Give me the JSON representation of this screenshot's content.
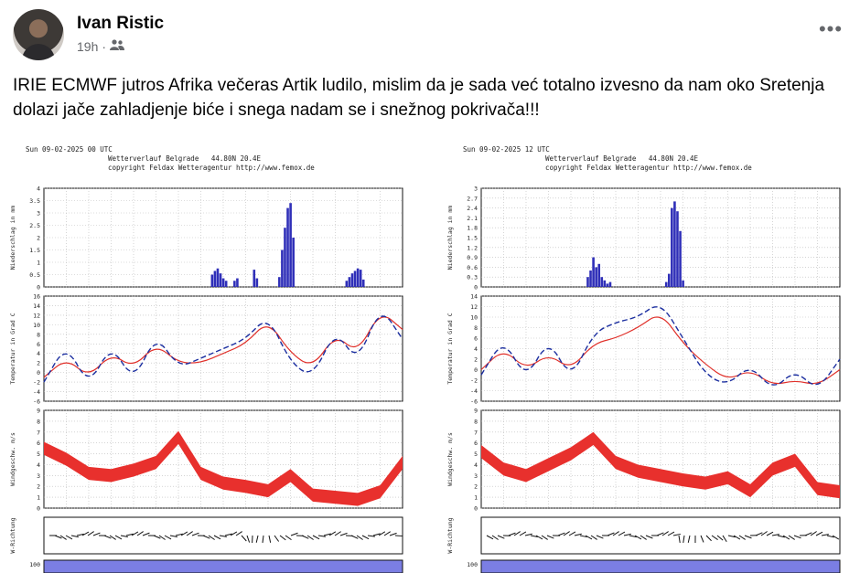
{
  "post": {
    "author": "Ivan Ristic",
    "time": "19h",
    "privacy_icon": "friends-icon",
    "text": "IRIE ECMWF jutros Afrika večeras Artik ludilo, mislim da je sada već totalno izvesno da nam oko Sretenja dolazi jače zahladjenje biće i snega nadam se i snežnog pokrivača!!!"
  },
  "charts": [
    {
      "run": "Sun 09-02-2025 00 UTC",
      "station": "Wetterverlauf Belgrade",
      "coords": "44.80N 20.4E",
      "copyright": "copyright Feldax Wetteragentur http://www.femox.de",
      "precip_label": "Niederschlag in mm",
      "temp_label": "Temperatur in Grad C",
      "wind_label": "Windgeschw. m/s",
      "dir_label": "W-Richtung",
      "precip_ticks": [
        "4",
        "3.5",
        "3",
        "2.5",
        "2",
        "1.5",
        "1",
        "0.5",
        "0"
      ],
      "temp_ticks": [
        "16",
        "14",
        "12",
        "10",
        "8",
        "6",
        "4",
        "2",
        "0",
        "-2",
        "-4",
        "-6"
      ],
      "wind_ticks": [
        "9",
        "8",
        "7",
        "6",
        "5",
        "4",
        "3",
        "2",
        "1",
        "0"
      ]
    },
    {
      "run": "Sun 09-02-2025 12 UTC",
      "station": "Wetterverlauf Belgrade",
      "coords": "44.80N 20.4E",
      "copyright": "copyright Feldax Wetteragentur http://www.femox.de",
      "precip_label": "Niederschlag in mm",
      "temp_label": "Temperatur in Grad C",
      "wind_label": "Windgeschw. m/s",
      "dir_label": "W-Richtung",
      "precip_ticks": [
        "3",
        "2.7",
        "2.4",
        "2.1",
        "1.8",
        "1.5",
        "1.2",
        "0.9",
        "0.6",
        "0.3",
        "0"
      ],
      "temp_ticks": [
        "14",
        "12",
        "10",
        "8",
        "6",
        "4",
        "2",
        "0",
        "-2",
        "-4",
        "-6"
      ],
      "wind_ticks": [
        "9",
        "8",
        "7",
        "6",
        "5",
        "4",
        "3",
        "2",
        "1",
        "0"
      ]
    }
  ],
  "chart_data": [
    {
      "type": "bar",
      "title": "Sun 09-02-2025 00 UTC",
      "ylabel": "Niederschlag in mm",
      "ylim": [
        0,
        4
      ],
      "x": [
        60,
        61,
        62,
        63,
        64,
        65,
        68,
        69,
        75,
        76,
        84,
        85,
        86,
        87,
        88,
        89,
        108,
        109,
        110,
        111,
        112,
        113,
        114
      ],
      "values": [
        0.5,
        0.65,
        0.75,
        0.55,
        0.35,
        0.25,
        0.25,
        0.35,
        0.7,
        0.35,
        0.4,
        1.5,
        2.4,
        3.2,
        3.4,
        2.0,
        0.25,
        0.4,
        0.55,
        0.65,
        0.75,
        0.7,
        0.3
      ],
      "xlim": [
        0,
        128
      ]
    },
    {
      "type": "line",
      "ylabel": "Temperatur in Grad C",
      "ylim": [
        -6,
        16
      ],
      "xlim": [
        0,
        128
      ],
      "x": [
        0,
        8,
        16,
        24,
        32,
        40,
        48,
        56,
        64,
        72,
        80,
        88,
        96,
        104,
        112,
        120,
        128
      ],
      "series": [
        {
          "name": "",
          "color": "#e0302a",
          "values": [
            -1,
            3,
            -1,
            4,
            1,
            6,
            2,
            2,
            4,
            6,
            11,
            4,
            1,
            8,
            4,
            13,
            9
          ]
        },
        {
          "name": "",
          "color": "#1c2fa0",
          "values": [
            -2,
            6,
            -3,
            6,
            -2,
            8,
            1,
            3,
            5,
            7,
            12,
            2,
            -1,
            9,
            2,
            14,
            7
          ]
        }
      ]
    },
    {
      "type": "area",
      "ylabel": "Windgeschw. m/s",
      "ylim": [
        0,
        9
      ],
      "xlim": [
        0,
        128
      ],
      "x": [
        0,
        8,
        16,
        24,
        32,
        40,
        48,
        56,
        64,
        72,
        80,
        88,
        96,
        104,
        112,
        120,
        128
      ],
      "series": [
        {
          "name": "",
          "color": "#e8302d",
          "values": [
            5.5,
            4.5,
            3.2,
            3.0,
            3.5,
            4.2,
            6.5,
            3.2,
            2.3,
            2.0,
            1.6,
            3.0,
            1.2,
            1.0,
            0.8,
            1.5,
            4.2
          ]
        }
      ]
    },
    {
      "type": "bar",
      "title": "Sun 09-02-2025 12 UTC",
      "ylabel": "Niederschlag in mm",
      "ylim": [
        0,
        3
      ],
      "x": [
        38,
        39,
        40,
        41,
        42,
        43,
        44,
        45,
        46,
        66,
        67,
        68,
        69,
        70,
        71,
        72
      ],
      "values": [
        0.3,
        0.5,
        0.9,
        0.6,
        0.7,
        0.3,
        0.2,
        0.1,
        0.15,
        0.15,
        0.4,
        2.4,
        2.6,
        2.3,
        1.7,
        0.2
      ],
      "xlim": [
        0,
        128
      ]
    },
    {
      "type": "line",
      "ylabel": "Temperatur in Grad C",
      "ylim": [
        -6,
        14
      ],
      "xlim": [
        0,
        128
      ],
      "x": [
        0,
        8,
        16,
        24,
        32,
        40,
        48,
        56,
        64,
        72,
        80,
        88,
        96,
        104,
        112,
        120,
        128
      ],
      "series": [
        {
          "name": "",
          "color": "#e0302a",
          "values": [
            0,
            4,
            0,
            3,
            0,
            5,
            6,
            8,
            11,
            5,
            1,
            -2,
            0,
            -3,
            -2,
            -3,
            0
          ]
        },
        {
          "name": "",
          "color": "#1c2fa0",
          "values": [
            -1,
            6,
            -2,
            6,
            -2,
            7,
            9,
            10,
            13,
            6,
            -1,
            -3,
            1,
            -4,
            0,
            -4,
            2
          ]
        }
      ]
    },
    {
      "type": "area",
      "ylabel": "Windgeschw. m/s",
      "ylim": [
        0,
        9
      ],
      "xlim": [
        0,
        128
      ],
      "x": [
        0,
        8,
        16,
        24,
        32,
        40,
        48,
        56,
        64,
        72,
        80,
        88,
        96,
        104,
        112,
        120,
        128
      ],
      "series": [
        {
          "name": "",
          "color": "#e8302d",
          "values": [
            5.2,
            3.6,
            3.0,
            4.0,
            5.0,
            6.4,
            4.2,
            3.4,
            3.0,
            2.6,
            2.3,
            2.8,
            1.6,
            3.6,
            4.4,
            1.8,
            1.5
          ]
        }
      ]
    }
  ],
  "colors": {
    "precip_bar": "#2f2fb8",
    "temp_red": "#e0302a",
    "temp_blue": "#1c2fa0",
    "wind_band": "#e8302d",
    "bottom_strip": "#7b7ee3"
  }
}
